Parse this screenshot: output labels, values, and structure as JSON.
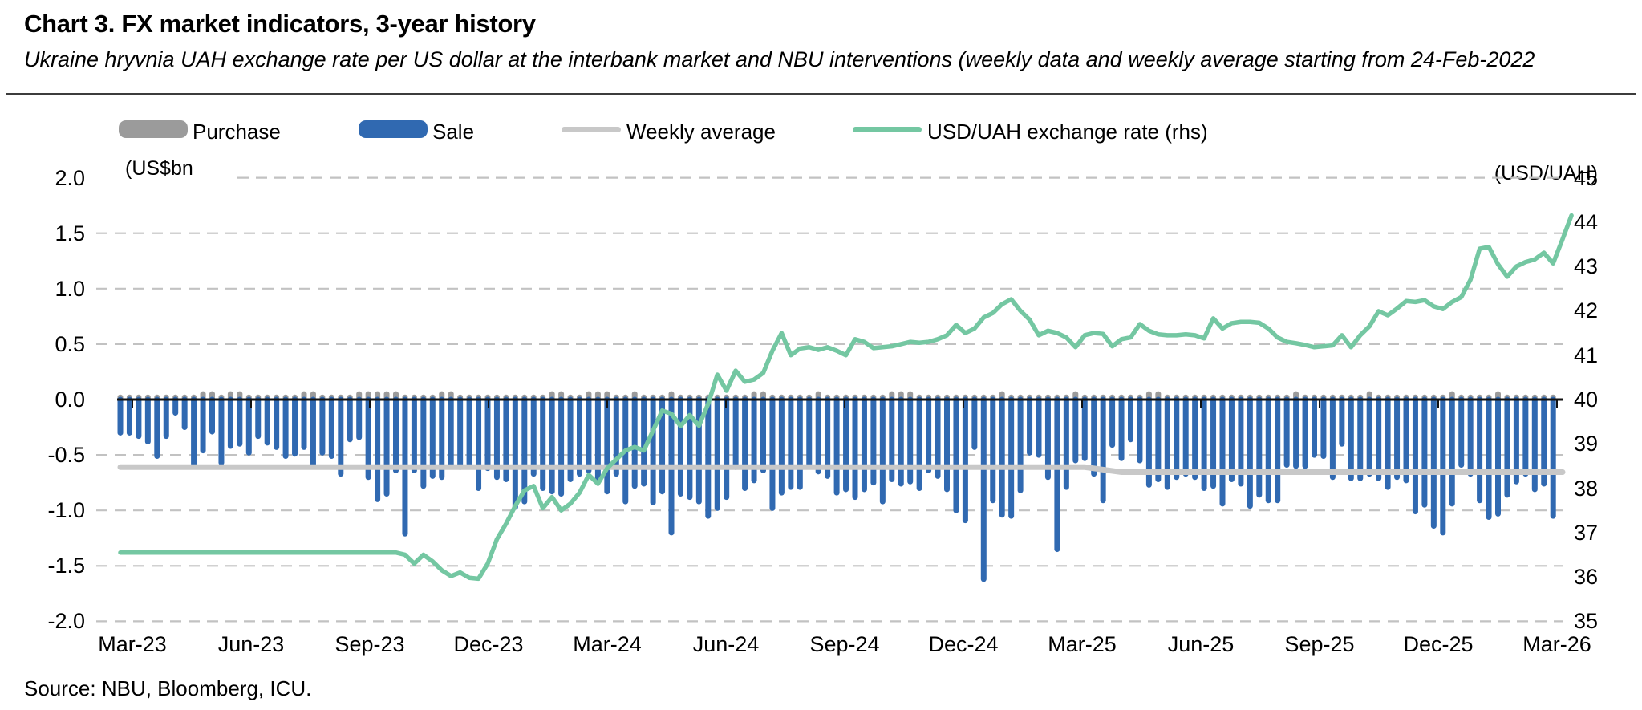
{
  "header": {
    "title": "Chart 3. FX market indicators, 3-year history",
    "subtitle": "Ukraine hryvnia UAH exchange rate per US dollar at the interbank market and NBU interventions (weekly data and weekly average starting from 24-Feb-2022"
  },
  "source": "Source: NBU, Bloomberg, ICU.",
  "legend": [
    {
      "label": "Purchase",
      "color": "#9b9b9b",
      "swatch": "bar"
    },
    {
      "label": "Sale",
      "color": "#3069b1",
      "swatch": "bar"
    },
    {
      "label": "Weekly average",
      "color": "#c8c8c8",
      "swatch": "line"
    },
    {
      "label": "USD/UAH exchange rate (rhs)",
      "color": "#74c7a2",
      "swatch": "line"
    }
  ],
  "chart_data": {
    "type": "bar+line combo, weekly data Mar-2023 to Mar-2026",
    "x_tick_labels": [
      "Mar-23",
      "Jun-23",
      "Sep-23",
      "Dec-23",
      "Mar-24",
      "Jun-24",
      "Sep-24",
      "Dec-24",
      "Mar-25",
      "Jun-25",
      "Sep-25",
      "Dec-25",
      "Mar-26"
    ],
    "left_axis": {
      "unit_label": "(US$bn",
      "min": -2.0,
      "max": 2.0,
      "step": 0.5,
      "tick_labels": [
        "2.0",
        "1.5",
        "1.0",
        "0.5",
        "0.0",
        "-0.5",
        "-1.0",
        "-1.5",
        "-2.0"
      ]
    },
    "right_axis": {
      "unit_label": "(USD/UAH)",
      "min": 35,
      "max": 45,
      "step": 1,
      "tick_labels": [
        "45",
        "44",
        "43",
        "42",
        "41",
        "40",
        "39",
        "38",
        "37",
        "36",
        "35"
      ]
    },
    "grid": "horizontal dashed, zero line solid black",
    "legend_position": "top",
    "colors": {
      "purchase": "#9b9b9b",
      "sale": "#3069b1",
      "weekly_average": "#c8c8c8",
      "fx_line": "#74c7a2",
      "grid": "#c2c2c2",
      "zero_line": "#111111"
    },
    "series": [
      {
        "name": "Purchase",
        "type": "bar",
        "axis": "left",
        "color": "#9b9b9b",
        "values": [
          0.02,
          0.02,
          0.02,
          0.02,
          0.02,
          0.02,
          0.02,
          0.02,
          0.02,
          0.05,
          0.05,
          0.02,
          0.05,
          0.05,
          0.02,
          0.02,
          0.02,
          0.02,
          0.02,
          0.02,
          0.05,
          0.05,
          0.02,
          0.02,
          0.02,
          0.02,
          0.05,
          0.05,
          0.05,
          0.05,
          0.05,
          0.02,
          0.02,
          0.02,
          0.02,
          0.05,
          0.05,
          0.02,
          0.02,
          0.02,
          0.02,
          0.02,
          0.02,
          0.02,
          0.02,
          0.02,
          0.02,
          0.05,
          0.05,
          0.02,
          0.02,
          0.05,
          0.05,
          0.05,
          0.02,
          0.02,
          0.05,
          0.02,
          0.02,
          0.02,
          0.05,
          0.02,
          0.02,
          0.02,
          0.02,
          0.02,
          0.02,
          0.02,
          0.02,
          0.05,
          0.05,
          0.02,
          0.02,
          0.02,
          0.02,
          0.02,
          0.05,
          0.02,
          0.02,
          0.02,
          0.02,
          0.02,
          0.02,
          0.02,
          0.05,
          0.05,
          0.05,
          0.02,
          0.02,
          0.02,
          0.02,
          0.02,
          0.02,
          0.02,
          0.02,
          0.02,
          0.05,
          0.02,
          0.02,
          0.02,
          0.02,
          0.02,
          0.02,
          0.02,
          0.05,
          0.02,
          0.02,
          0.02,
          0.02,
          0.02,
          0.02,
          0.02,
          0.05,
          0.05,
          0.02,
          0.02,
          0.02,
          0.02,
          0.02,
          0.02,
          0.02,
          0.02,
          0.02,
          0.02,
          0.02,
          0.02,
          0.02,
          0.02,
          0.05,
          0.02,
          0.02,
          0.02,
          0.02,
          0.02,
          0.02,
          0.02,
          0.05,
          0.02,
          0.02,
          0.02,
          0.02,
          0.02,
          0.02,
          0.02,
          0.02,
          0.05,
          0.02,
          0.02,
          0.02,
          0.02,
          0.05,
          0.02,
          0.02,
          0.02,
          0.02,
          0.02,
          0.02
        ]
      },
      {
        "name": "Sale",
        "type": "bar",
        "axis": "left",
        "color": "#3069b1",
        "values": [
          -0.3,
          -0.3,
          -0.33,
          -0.38,
          -0.51,
          -0.33,
          -0.12,
          -0.25,
          -0.58,
          -0.46,
          -0.29,
          -0.57,
          -0.42,
          -0.4,
          -0.48,
          -0.33,
          -0.39,
          -0.43,
          -0.51,
          -0.49,
          -0.43,
          -0.6,
          -0.48,
          -0.51,
          -0.67,
          -0.36,
          -0.34,
          -0.7,
          -0.9,
          -0.85,
          -0.64,
          -1.21,
          -0.64,
          -0.78,
          -0.69,
          -0.7,
          -0.59,
          -0.61,
          -0.58,
          -0.8,
          -0.62,
          -0.7,
          -0.72,
          -0.97,
          -0.92,
          -0.67,
          -0.8,
          -0.83,
          -0.85,
          -0.72,
          -0.67,
          -0.64,
          -0.72,
          -0.83,
          -0.67,
          -0.92,
          -0.78,
          -0.76,
          -0.93,
          -0.83,
          -1.2,
          -0.85,
          -0.88,
          -0.92,
          -1.05,
          -0.98,
          -0.88,
          -0.61,
          -0.8,
          -0.73,
          -0.64,
          -0.98,
          -0.84,
          -0.79,
          -0.79,
          -0.58,
          -0.65,
          -0.69,
          -0.84,
          -0.81,
          -0.88,
          -0.81,
          -0.75,
          -0.92,
          -0.72,
          -0.76,
          -0.74,
          -0.8,
          -0.64,
          -0.69,
          -0.81,
          -1.0,
          -1.09,
          -0.43,
          -1.62,
          -0.91,
          -1.04,
          -1.05,
          -0.82,
          -0.48,
          -0.5,
          -0.7,
          -1.35,
          -0.79,
          -0.55,
          -0.53,
          -0.67,
          -0.91,
          -0.41,
          -0.53,
          -0.36,
          -0.55,
          -0.77,
          -0.72,
          -0.79,
          -0.7,
          -0.67,
          -0.7,
          -0.8,
          -0.78,
          -0.94,
          -0.72,
          -0.76,
          -0.96,
          -0.86,
          -0.91,
          -0.91,
          -0.59,
          -0.6,
          -0.6,
          -0.5,
          -0.51,
          -0.7,
          -0.4,
          -0.71,
          -0.71,
          -0.67,
          -0.71,
          -0.79,
          -0.7,
          -0.73,
          -1.01,
          -0.95,
          -1.14,
          -1.2,
          -0.94,
          -0.59,
          -0.67,
          -0.91,
          -1.06,
          -1.03,
          -0.86,
          -0.74,
          -0.67,
          -0.81,
          -0.76,
          -1.05
        ]
      },
      {
        "name": "Weekly average",
        "type": "line",
        "axis": "left",
        "color": "#c8c8c8",
        "segments": [
          {
            "start_week": 0,
            "end_week": 105,
            "value": -0.61
          },
          {
            "start_week": 109,
            "end_week": 157,
            "value": -0.655
          }
        ]
      },
      {
        "name": "USD/UAH exchange rate (rhs)",
        "type": "line",
        "axis": "right",
        "color": "#74c7a2",
        "values": [
          36.55,
          36.55,
          36.55,
          36.55,
          36.55,
          36.55,
          36.55,
          36.55,
          36.55,
          36.55,
          36.55,
          36.55,
          36.55,
          36.55,
          36.55,
          36.55,
          36.55,
          36.55,
          36.55,
          36.55,
          36.55,
          36.55,
          36.55,
          36.55,
          36.55,
          36.55,
          36.55,
          36.55,
          36.55,
          36.55,
          36.55,
          36.5,
          36.3,
          36.5,
          36.35,
          36.15,
          36.02,
          36.1,
          35.98,
          35.96,
          36.3,
          36.85,
          37.2,
          37.6,
          37.95,
          38.05,
          37.55,
          37.8,
          37.5,
          37.65,
          37.9,
          38.3,
          38.1,
          38.45,
          38.65,
          38.85,
          38.93,
          38.85,
          39.3,
          39.75,
          39.68,
          39.4,
          39.65,
          39.41,
          39.9,
          40.56,
          40.2,
          40.65,
          40.4,
          40.45,
          40.6,
          41.1,
          41.5,
          41.0,
          41.15,
          41.18,
          41.12,
          41.18,
          41.1,
          41.0,
          41.36,
          41.3,
          41.16,
          41.18,
          41.2,
          41.25,
          41.3,
          41.28,
          41.3,
          41.36,
          41.45,
          41.68,
          41.5,
          41.6,
          41.85,
          41.95,
          42.15,
          42.26,
          42.0,
          41.8,
          41.45,
          41.55,
          41.5,
          41.4,
          41.18,
          41.45,
          41.5,
          41.48,
          41.2,
          41.36,
          41.4,
          41.7,
          41.55,
          41.47,
          41.45,
          41.45,
          41.47,
          41.45,
          41.38,
          41.83,
          41.6,
          41.72,
          41.75,
          41.75,
          41.73,
          41.6,
          41.4,
          41.3,
          41.27,
          41.23,
          41.18,
          41.2,
          41.22,
          41.45,
          41.18,
          41.45,
          41.65,
          41.99,
          41.9,
          42.05,
          42.22,
          42.2,
          42.24,
          42.1,
          42.04,
          42.2,
          42.31,
          42.7,
          43.4,
          43.44,
          43.05,
          42.77,
          43.0,
          43.1,
          43.16,
          43.31,
          43.07,
          43.6,
          44.15
        ]
      }
    ]
  }
}
